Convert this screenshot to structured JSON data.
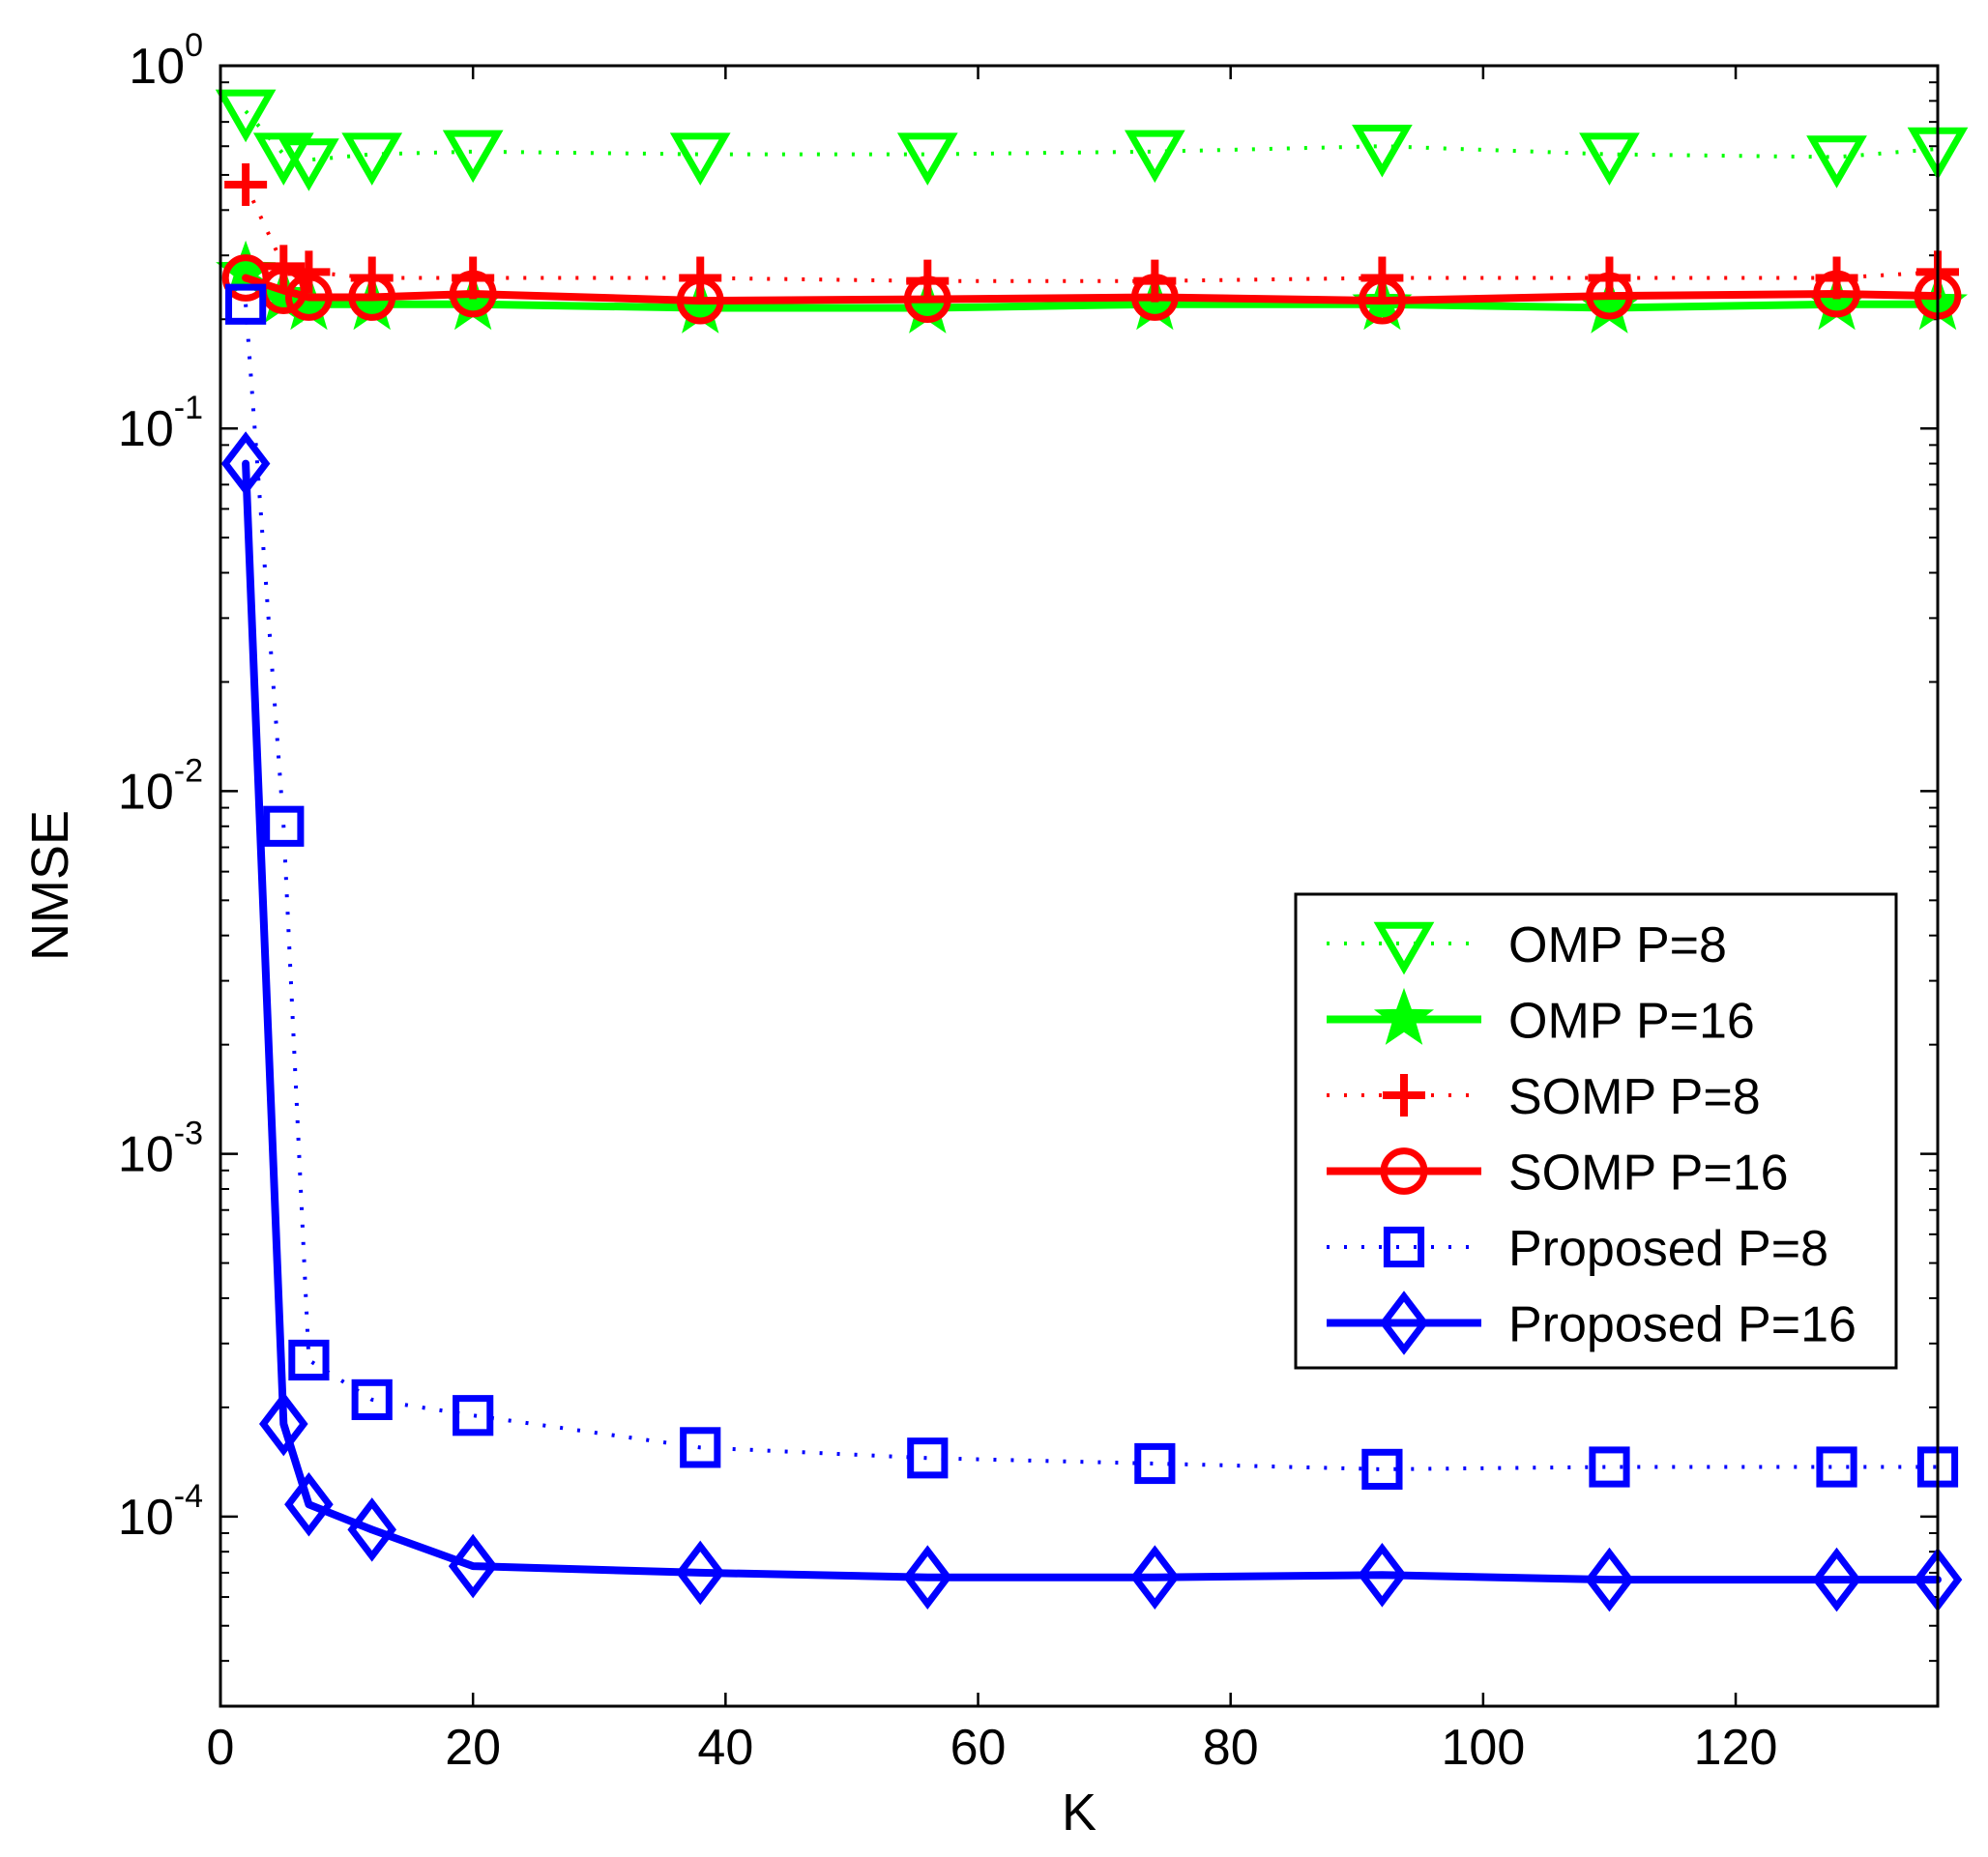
{
  "chart_data": {
    "type": "line",
    "title": "",
    "xlabel": "K",
    "ylabel": "NMSE",
    "xlim": [
      0,
      136
    ],
    "ylim": [
      3e-05,
      1
    ],
    "yscale": "log",
    "legend_position": "center-right",
    "xticks": [
      {
        "value": 0,
        "label": "0"
      },
      {
        "value": 20,
        "label": "20"
      },
      {
        "value": 40,
        "label": "40"
      },
      {
        "value": 60,
        "label": "60"
      },
      {
        "value": 80,
        "label": "80"
      },
      {
        "value": 100,
        "label": "100"
      },
      {
        "value": 120,
        "label": "120"
      }
    ],
    "yticks": [
      {
        "value": 1,
        "base": "10",
        "exp": "0"
      },
      {
        "value": 0.1,
        "base": "10",
        "exp": "-1"
      },
      {
        "value": 0.01,
        "base": "10",
        "exp": "-2"
      },
      {
        "value": 0.001,
        "base": "10",
        "exp": "-3"
      },
      {
        "value": 0.0001,
        "base": "10",
        "exp": "-4"
      }
    ],
    "x": [
      2,
      5,
      7,
      12,
      20,
      38,
      56,
      74,
      92,
      110,
      128,
      136
    ],
    "series": [
      {
        "name": "OMP P=8",
        "color": "#00ff00",
        "dash": "dotted",
        "marker": "triangle-down",
        "values": [
          0.75,
          0.57,
          0.55,
          0.57,
          0.58,
          0.57,
          0.57,
          0.58,
          0.6,
          0.57,
          0.56,
          0.59
        ]
      },
      {
        "name": "OMP P=16",
        "color": "#00ff00",
        "dash": "solid",
        "marker": "star",
        "values": [
          0.27,
          0.23,
          0.22,
          0.22,
          0.22,
          0.215,
          0.215,
          0.22,
          0.22,
          0.215,
          0.22,
          0.22
        ]
      },
      {
        "name": "SOMP P=8",
        "color": "#ff0000",
        "dash": "dotted",
        "marker": "plus",
        "values": [
          0.47,
          0.28,
          0.27,
          0.26,
          0.26,
          0.26,
          0.255,
          0.255,
          0.26,
          0.26,
          0.26,
          0.27
        ]
      },
      {
        "name": "SOMP P=16",
        "color": "#ff0000",
        "dash": "solid",
        "marker": "circle",
        "values": [
          0.26,
          0.24,
          0.23,
          0.23,
          0.235,
          0.225,
          0.227,
          0.23,
          0.225,
          0.232,
          0.235,
          0.232
        ]
      },
      {
        "name": "Proposed P=8",
        "color": "#0000ff",
        "dash": "dotted",
        "marker": "square",
        "values": [
          0.22,
          0.008,
          0.00027,
          0.00021,
          0.00019,
          0.000155,
          0.000145,
          0.00014,
          0.000135,
          0.000137,
          0.000137,
          0.000137
        ]
      },
      {
        "name": "Proposed P=16",
        "color": "#0000ff",
        "dash": "solid",
        "marker": "diamond",
        "values": [
          0.08,
          0.00018,
          0.000108,
          9.2e-05,
          7.3e-05,
          7e-05,
          6.8e-05,
          6.8e-05,
          6.9e-05,
          6.7e-05,
          6.7e-05,
          6.7e-05
        ]
      }
    ]
  }
}
